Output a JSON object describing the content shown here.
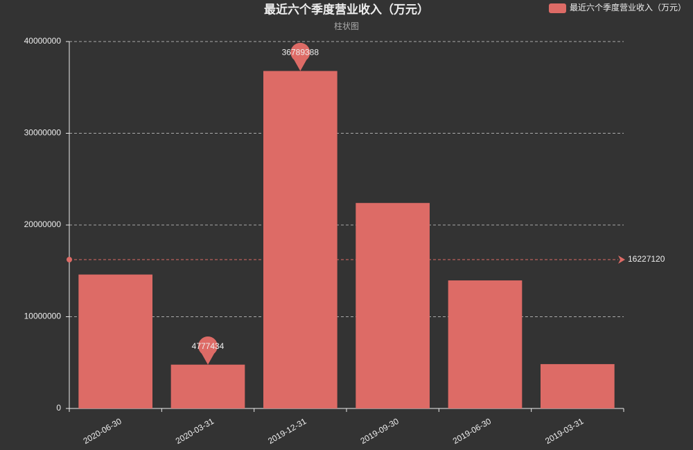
{
  "chart_data": {
    "type": "bar",
    "title": "最近六个季度营业收入（万元）",
    "subtitle": "柱状图",
    "categories": [
      "2020-06-30",
      "2020-03-31",
      "2019-12-31",
      "2019-09-30",
      "2019-06-30",
      "2019-03-31"
    ],
    "series": [
      {
        "name": "最近六个季度营业收入（万元）",
        "color": "#dd6b66",
        "values": [
          14600000,
          4777434,
          36789388,
          22400000,
          13960000,
          4835898
        ]
      }
    ],
    "ylim": [
      0,
      40000000
    ],
    "yticks": [
      0,
      10000000,
      20000000,
      30000000,
      40000000
    ],
    "grid": true,
    "mark_points": {
      "max_index": 2,
      "min_index": 1
    },
    "average": 16227120,
    "legend": "top-right"
  }
}
